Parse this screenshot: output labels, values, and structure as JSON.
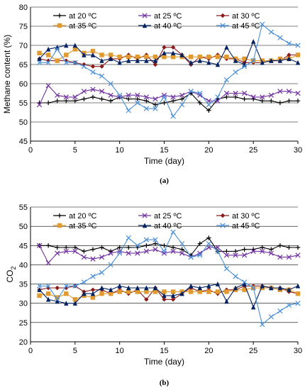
{
  "chart_data": [
    {
      "type": "line",
      "ylabel": "Methane content (%)",
      "xlabel": "Time (day)",
      "caption": "(a)",
      "xlim": [
        0,
        30
      ],
      "ylim": [
        45,
        80
      ],
      "xticks": [
        "0",
        "5",
        "10",
        "15",
        "20",
        "25",
        "30"
      ],
      "yticks": [
        "45",
        "50",
        "55",
        "60",
        "65",
        "70",
        "75",
        "80"
      ],
      "grid": "horizontal",
      "legend_position": "top",
      "x": [
        1,
        2,
        3,
        4,
        5,
        6,
        7,
        8,
        9,
        10,
        11,
        12,
        13,
        14,
        15,
        16,
        17,
        18,
        19,
        20,
        21,
        22,
        23,
        24,
        25,
        26,
        27,
        28,
        29,
        30
      ],
      "series": [
        {
          "name": "at 20  ºC",
          "color": "#000000",
          "marker": "plus",
          "values": [
            55,
            55,
            55.5,
            55.5,
            55.5,
            56,
            56.5,
            56,
            55.5,
            56.5,
            56,
            56,
            55.5,
            54.5,
            55,
            55.5,
            56,
            57.5,
            55,
            53,
            56,
            56.5,
            56.5,
            56,
            56,
            55.5,
            55.5,
            55,
            55.5,
            55.5
          ]
        },
        {
          "name": "at 25  ºC",
          "color": "#7030a0",
          "marker": "x",
          "values": [
            54.5,
            59.5,
            57,
            56.5,
            56.5,
            58,
            58.5,
            58,
            57,
            56.5,
            57,
            57,
            56.5,
            56,
            57,
            56.5,
            57,
            58,
            57,
            55.5,
            55.5,
            57.5,
            57.5,
            57.5,
            56.5,
            56.5,
            57,
            58,
            58,
            57.5
          ]
        },
        {
          "name": "at 30  ºC",
          "color": "#8b1a1a",
          "marker": "diamond",
          "values": [
            66.5,
            66,
            66,
            66,
            65.5,
            65,
            64.5,
            64.5,
            66.5,
            66.5,
            67.5,
            66.5,
            67.5,
            65,
            69.5,
            69.5,
            67.5,
            65,
            67,
            66.5,
            67.5,
            66.5,
            66.5,
            65.5,
            65.5,
            65.5,
            66,
            66,
            67.5,
            67.5
          ]
        },
        {
          "name": "at 35  ºC",
          "color": "#e09a30",
          "marker": "square",
          "values": [
            68,
            67.5,
            66,
            67.5,
            69,
            68,
            68.5,
            67.5,
            67.5,
            67,
            67,
            67,
            67,
            67,
            67,
            67,
            67,
            67,
            67,
            67,
            67,
            67,
            66.5,
            66.5,
            66,
            66,
            66,
            66.5,
            66.5,
            67.5
          ]
        },
        {
          "name": "at 40  ºC",
          "color": "#002060",
          "marker": "triangle",
          "values": [
            66.5,
            69,
            69.5,
            70,
            70,
            67.5,
            67.5,
            66,
            66.5,
            65.5,
            66,
            66,
            66,
            66,
            68,
            68,
            67.5,
            65.5,
            66,
            65.5,
            65,
            69.5,
            66,
            65,
            71,
            65.5,
            66,
            66,
            66.5,
            65.5
          ]
        },
        {
          "name": "at 45  ºC",
          "color": "#4a8fd8",
          "marker": "x",
          "values": [
            65.5,
            65.5,
            69,
            65.5,
            65.5,
            64.5,
            63,
            62,
            60,
            57,
            53,
            55,
            53.5,
            53.5,
            56.5,
            51.5,
            54.5,
            58,
            57.5,
            54.5,
            56.5,
            61,
            63,
            64.5,
            66,
            75.5,
            73.5,
            72,
            70.5,
            70
          ]
        }
      ]
    },
    {
      "type": "line",
      "ylabel": "CO",
      "ylabel_sub": "2",
      "xlabel": "Time (day)",
      "caption": "(b)",
      "xlim": [
        0,
        30
      ],
      "ylim": [
        20,
        55
      ],
      "xticks": [
        "0",
        "5",
        "10",
        "15",
        "20",
        "25",
        "30"
      ],
      "yticks": [
        "20",
        "25",
        "30",
        "35",
        "40",
        "45",
        "50",
        "55"
      ],
      "grid": "horizontal",
      "legend_position": "top",
      "x": [
        1,
        2,
        3,
        4,
        5,
        6,
        7,
        8,
        9,
        10,
        11,
        12,
        13,
        14,
        15,
        16,
        17,
        18,
        19,
        20,
        21,
        22,
        23,
        24,
        25,
        26,
        27,
        28,
        29,
        30
      ],
      "series": [
        {
          "name": "at 20 ºC",
          "color": "#000000",
          "marker": "plus",
          "values": [
            45,
            45,
            44.5,
            44.5,
            44.5,
            43.5,
            44,
            44.5,
            43.5,
            44.5,
            44.5,
            44.5,
            45,
            45.5,
            45,
            44.5,
            44,
            42.5,
            45.5,
            47,
            43.5,
            43.5,
            43.5,
            44,
            44,
            44.5,
            44,
            45,
            44.5,
            44.5
          ]
        },
        {
          "name": "at 25 ºC",
          "color": "#7030a0",
          "marker": "x",
          "values": [
            45,
            40.5,
            43,
            43.5,
            43.5,
            42,
            41.5,
            42,
            43,
            43.5,
            43,
            43,
            43.5,
            44,
            43,
            43.5,
            43,
            42,
            43,
            44.5,
            44.5,
            42.5,
            42.5,
            42.5,
            43.5,
            43.5,
            43,
            42,
            42,
            42.5
          ]
        },
        {
          "name": "at 30 ºC",
          "color": "#8b1a1a",
          "marker": "diamond",
          "values": [
            33.5,
            34,
            34,
            34,
            34.5,
            33,
            33.5,
            33.5,
            32.5,
            33.5,
            32.5,
            33.5,
            31,
            34,
            31,
            31,
            32.5,
            34,
            33,
            33.5,
            32.5,
            33.5,
            33.5,
            34.5,
            34.5,
            34.5,
            34,
            34,
            33,
            32.5
          ]
        },
        {
          "name": "at 35 ºC",
          "color": "#e09a30",
          "marker": "square",
          "values": [
            32,
            32.5,
            31.5,
            32.5,
            31,
            32,
            31.5,
            32.5,
            32.5,
            33,
            33,
            33,
            33,
            33,
            33,
            33,
            33,
            33,
            33,
            33,
            33,
            33,
            33.5,
            33.5,
            34,
            34,
            34,
            33.5,
            33.5,
            32.5
          ]
        },
        {
          "name": "at 40 ºC",
          "color": "#002060",
          "marker": "triangle",
          "values": [
            33.5,
            31,
            30.5,
            30,
            30,
            32.5,
            32.5,
            34,
            33.5,
            34.5,
            34,
            34,
            34,
            34,
            32,
            32,
            32.5,
            34.5,
            34,
            34.5,
            35,
            30.5,
            34,
            35,
            29,
            34.5,
            34,
            34,
            33.5,
            34.5
          ]
        },
        {
          "name": "at 45 ºC",
          "color": "#4a8fd8",
          "marker": "x",
          "values": [
            34.5,
            34.5,
            31,
            34.5,
            34.5,
            35.5,
            37,
            38,
            40,
            43,
            47,
            45,
            46.5,
            46.5,
            43.5,
            48.5,
            45.5,
            42,
            42.5,
            45.5,
            43.5,
            39,
            37,
            35.5,
            34,
            24.5,
            26.5,
            28,
            29.5,
            30
          ]
        }
      ]
    }
  ]
}
